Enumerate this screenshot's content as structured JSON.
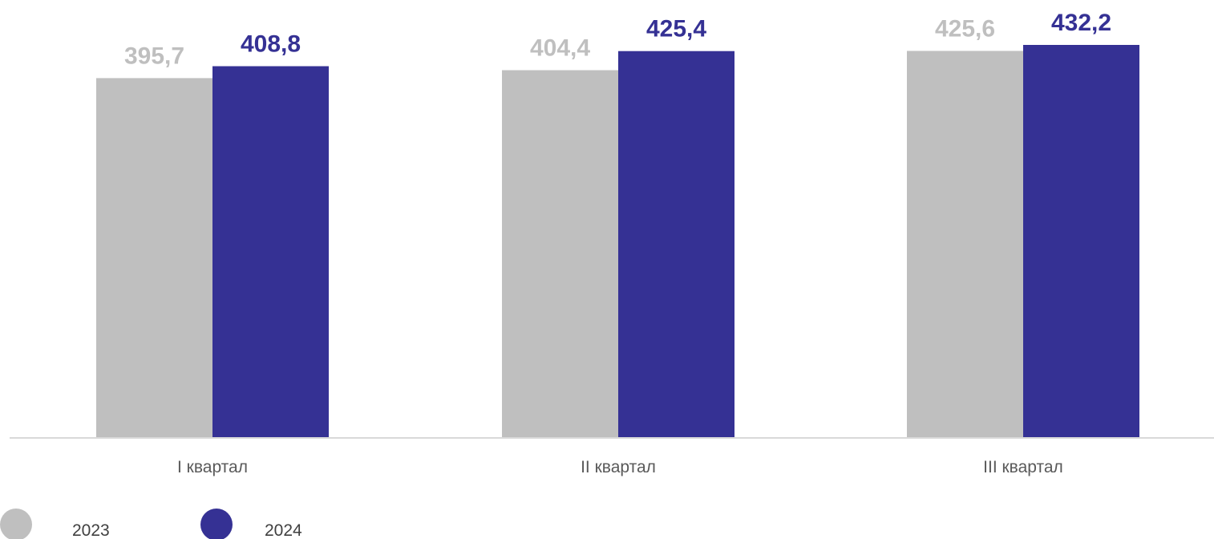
{
  "chart_data": {
    "type": "bar",
    "categories": [
      "I квартал",
      "II квартал",
      "III квартал"
    ],
    "series": [
      {
        "name": "2023",
        "values": [
          395.7,
          404.4,
          425.6
        ],
        "labels": [
          "395,7",
          "404,4",
          "425,6"
        ],
        "color": "#bfbfbf",
        "label_color": "#bfbfbf"
      },
      {
        "name": "2024",
        "values": [
          408.8,
          425.4,
          432.2
        ],
        "labels": [
          "408,8",
          "425,4",
          "432,2"
        ],
        "color": "#353194",
        "label_color": "#353194"
      }
    ],
    "title": "",
    "xlabel": "",
    "ylabel": "",
    "ylim": [
      0,
      450
    ],
    "y_axis_visible": false,
    "grid": false,
    "legend_position": "bottom-left",
    "axis_color": "#d9d9d9"
  }
}
